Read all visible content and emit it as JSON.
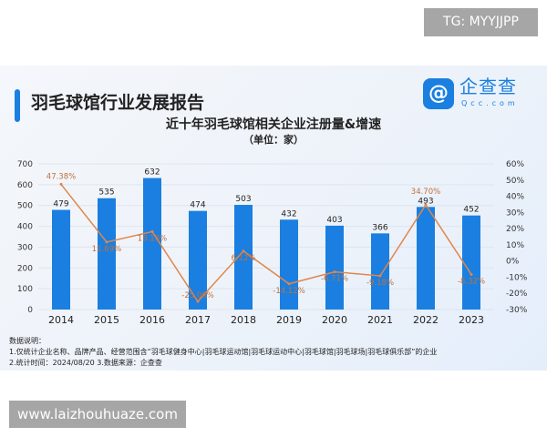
{
  "header": {
    "title": "羽毛球馆行业发展报告",
    "logo_cn": "企查查",
    "logo_en": "Qcc.com"
  },
  "watermarks": {
    "top": "TG: MYYJJPP",
    "bottom": "www.laizhouhuaze.com"
  },
  "chart_data": {
    "type": "bar+line",
    "title": "近十年羽毛球馆相关企业注册量&增速",
    "subtitle": "（单位：家）",
    "categories": [
      "2014",
      "2015",
      "2016",
      "2017",
      "2018",
      "2019",
      "2020",
      "2021",
      "2022",
      "2023"
    ],
    "series": [
      {
        "type": "bar",
        "axis": "left",
        "values": [
          479,
          535,
          632,
          474,
          503,
          432,
          403,
          366,
          493,
          452
        ],
        "color": "#1a7fe0"
      },
      {
        "type": "line",
        "axis": "right",
        "values": [
          47.38,
          11.69,
          18.13,
          -25.0,
          6.12,
          -14.12,
          -6.71,
          -9.18,
          34.7,
          -8.32
        ],
        "labels": [
          "47.38%",
          "11.69%",
          "18.13%",
          "-25.00%",
          "6.12%",
          "-14.12%",
          "-6.71%",
          "-9.18%",
          "34.70%",
          "-8.32%"
        ],
        "color": "#e0864a"
      }
    ],
    "ylim_left": [
      0,
      700
    ],
    "yticks_left": [
      "0",
      "100",
      "200",
      "300",
      "400",
      "500",
      "600",
      "700"
    ],
    "ylim_right": [
      -30,
      60
    ],
    "yticks_right": [
      "-30%",
      "-20%",
      "-10%",
      "0%",
      "10%",
      "20%",
      "30%",
      "40%",
      "50%",
      "60%"
    ],
    "grid": true
  },
  "notes": {
    "heading": "数据说明：",
    "line1": "1.仅统计企业名称、品牌产品、经营范围含“羽毛球健身中心|羽毛球运动馆|羽毛球运动中心|羽毛球馆|羽毛球场|羽毛球俱乐部”的企业",
    "line2": "2.统计时间：2024/08/20    3.数据来源：企查查"
  }
}
